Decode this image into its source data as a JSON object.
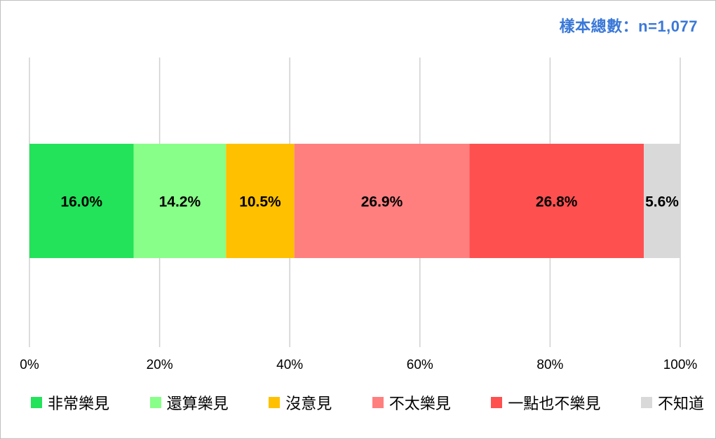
{
  "sample_note": "樣本總數：n=1,077",
  "colors": {
    "very_willing": "#22e35a",
    "somewhat_willing": "#88ff88",
    "no_opinion": "#ffc000",
    "not_very_willing": "#ff7f7f",
    "not_at_all_willing": "#ff5050",
    "dont_know": "#d9d9d9",
    "gridline": "#d0d0d0"
  },
  "chart_data": {
    "type": "bar",
    "orientation": "horizontal-stacked",
    "xlim": [
      0,
      100
    ],
    "x_ticks": [
      "0%",
      "20%",
      "40%",
      "60%",
      "80%",
      "100%"
    ],
    "x_tick_values": [
      0,
      20,
      40,
      60,
      80,
      100
    ],
    "grid": true,
    "legend_position": "bottom",
    "series": [
      {
        "name": "非常樂見",
        "value": 16.0,
        "label": "16.0%",
        "color_key": "very_willing"
      },
      {
        "name": "還算樂見",
        "value": 14.2,
        "label": "14.2%",
        "color_key": "somewhat_willing"
      },
      {
        "name": "沒意見",
        "value": 10.5,
        "label": "10.5%",
        "color_key": "no_opinion"
      },
      {
        "name": "不太樂見",
        "value": 26.9,
        "label": "26.9%",
        "color_key": "not_very_willing"
      },
      {
        "name": "一點也不樂見",
        "value": 26.8,
        "label": "26.8%",
        "color_key": "not_at_all_willing"
      },
      {
        "name": "不知道",
        "value": 5.6,
        "label": "5.6%",
        "color_key": "dont_know"
      }
    ]
  }
}
